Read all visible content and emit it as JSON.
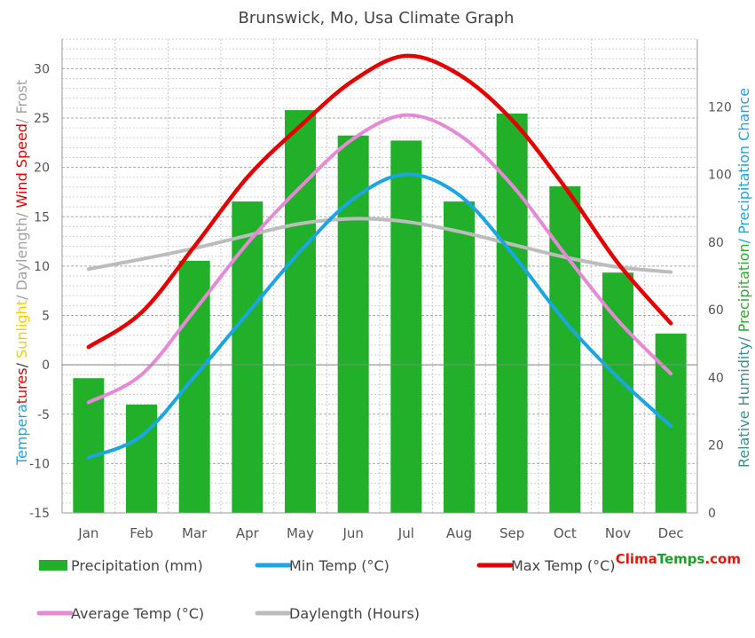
{
  "colors": {
    "precip": "#22b02a",
    "min": "#1aa6e4",
    "max": "#e60000",
    "avg": "#e68ad8",
    "day": "#bcbcbc",
    "grid": "#b0b0b0",
    "text": "#444444",
    "sunlight": "#f0d000",
    "frost": "#a0a0a0",
    "humidity": "#3c8f8f",
    "precipchance": "#2aaa2a",
    "brand_red": "#e8150d",
    "brand_green": "#1e9e2a"
  },
  "chart_data": {
    "type": "bar+line",
    "title": "Brunswick, Mo, Usa Climate Graph",
    "categories": [
      "Jan",
      "Feb",
      "Mar",
      "Apr",
      "May",
      "Jun",
      "Jul",
      "Aug",
      "Sep",
      "Oct",
      "Nov",
      "Dec"
    ],
    "left_axis": {
      "label_parts": [
        {
          "text": "Tempera",
          "color": "temp"
        },
        {
          "text": "tures",
          "color": "max"
        },
        {
          "text": "/ ",
          "color": "text"
        },
        {
          "text": "Sunlight",
          "color": "sunlight"
        },
        {
          "text": "/ Daylength/ ",
          "color": "frost"
        },
        {
          "text": "Wind Speed",
          "color": "max"
        },
        {
          "text": "/ Frost",
          "color": "frost"
        }
      ],
      "ylim": [
        -15,
        33
      ],
      "ticks": [
        -15,
        -10,
        -5,
        0,
        5,
        10,
        15,
        20,
        25,
        30
      ]
    },
    "right_axis": {
      "label_parts": [
        {
          "text": "Relative Humidity/ ",
          "color": "humidity"
        },
        {
          "text": "Precipitation",
          "color": "precipchance"
        },
        {
          "text": "/ Precipitation Chance",
          "color": "min"
        }
      ],
      "ylim": [
        0,
        140
      ],
      "ticks": [
        0,
        20,
        40,
        60,
        80,
        100,
        120
      ]
    },
    "series": [
      {
        "name": "Precipitation (mm)",
        "type": "bar",
        "axis": "right",
        "color": "precip",
        "values": [
          39.8,
          32.0,
          74.5,
          92.0,
          119.0,
          111.5,
          110.0,
          92.0,
          118.0,
          96.5,
          71.0,
          53.0
        ]
      },
      {
        "name": "Min Temp (°C)",
        "type": "line",
        "axis": "left",
        "color": "min",
        "values": [
          -9.4,
          -7.2,
          -1.2,
          5.2,
          11.5,
          16.8,
          19.3,
          17.2,
          11.3,
          4.4,
          -1.3,
          -6.2
        ]
      },
      {
        "name": "Max Temp (°C)",
        "type": "line",
        "axis": "left",
        "color": "max",
        "values": [
          1.8,
          5.3,
          12.0,
          19.0,
          24.2,
          28.8,
          31.3,
          29.4,
          24.8,
          18.0,
          10.3,
          4.2
        ]
      },
      {
        "name": "Average Temp (°C)",
        "type": "line",
        "axis": "left",
        "color": "avg",
        "values": [
          -3.8,
          -1.0,
          5.5,
          12.3,
          18.0,
          22.9,
          25.3,
          23.3,
          18.2,
          11.2,
          4.5,
          -0.9
        ]
      },
      {
        "name": "Daylength (Hours)",
        "type": "line",
        "axis": "left",
        "color": "day",
        "values": [
          9.7,
          10.7,
          11.8,
          13.1,
          14.3,
          14.8,
          14.5,
          13.5,
          12.2,
          10.9,
          9.9,
          9.4
        ]
      }
    ],
    "legend_position": "bottom",
    "grid": true
  },
  "logo": {
    "part1": "Clima",
    "part2": "Temps",
    "part3": ".com"
  }
}
